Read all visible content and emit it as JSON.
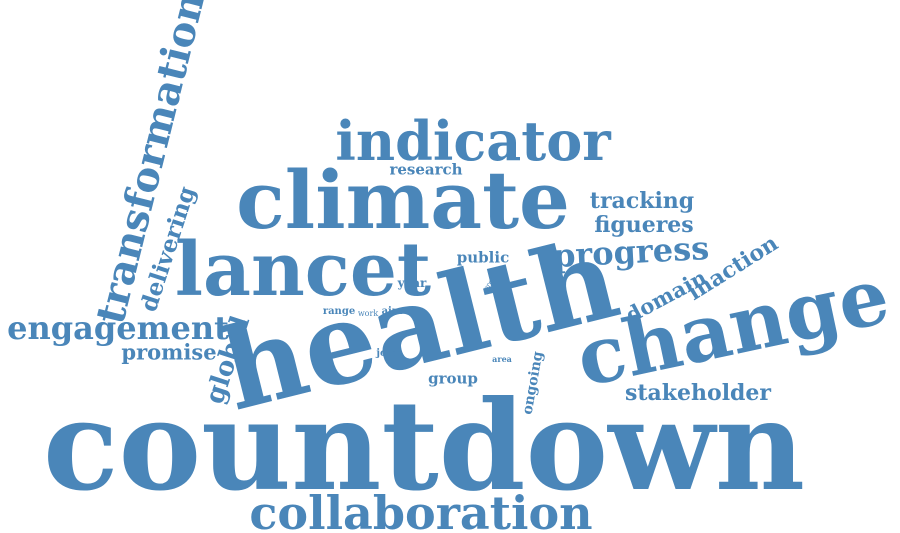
{
  "colors": {
    "word": "#4a86b9",
    "background": "#ffffff"
  },
  "words": [
    {
      "key": "countdown",
      "text": "countdown"
    },
    {
      "key": "health",
      "text": "health"
    },
    {
      "key": "climate",
      "text": "climate"
    },
    {
      "key": "change",
      "text": "change"
    },
    {
      "key": "lancet",
      "text": "lancet"
    },
    {
      "key": "indicator",
      "text": "indicator"
    },
    {
      "key": "collaboration",
      "text": "collaboration"
    },
    {
      "key": "transformation",
      "text": "transformation"
    },
    {
      "key": "engagement",
      "text": "engagement"
    },
    {
      "key": "progress",
      "text": "progress"
    },
    {
      "key": "tracking",
      "text": "tracking"
    },
    {
      "key": "figueres",
      "text": "figueres"
    },
    {
      "key": "delivering",
      "text": "delivering"
    },
    {
      "key": "promise",
      "text": "promise"
    },
    {
      "key": "global",
      "text": "global"
    },
    {
      "key": "domain",
      "text": "domain"
    },
    {
      "key": "inaction",
      "text": "inaction"
    },
    {
      "key": "stakeholder",
      "text": "stakeholder"
    },
    {
      "key": "research",
      "text": "research"
    },
    {
      "key": "public",
      "text": "public"
    },
    {
      "key": "group",
      "text": "group"
    },
    {
      "key": "ongoing",
      "text": "ongoing"
    },
    {
      "key": "year",
      "text": "year"
    },
    {
      "key": "range",
      "text": "range"
    },
    {
      "key": "work",
      "text": "work"
    },
    {
      "key": "aim",
      "text": "aim"
    },
    {
      "key": "join",
      "text": "join"
    },
    {
      "key": "area",
      "text": "area"
    },
    {
      "key": "proc",
      "text": "proc"
    }
  ]
}
